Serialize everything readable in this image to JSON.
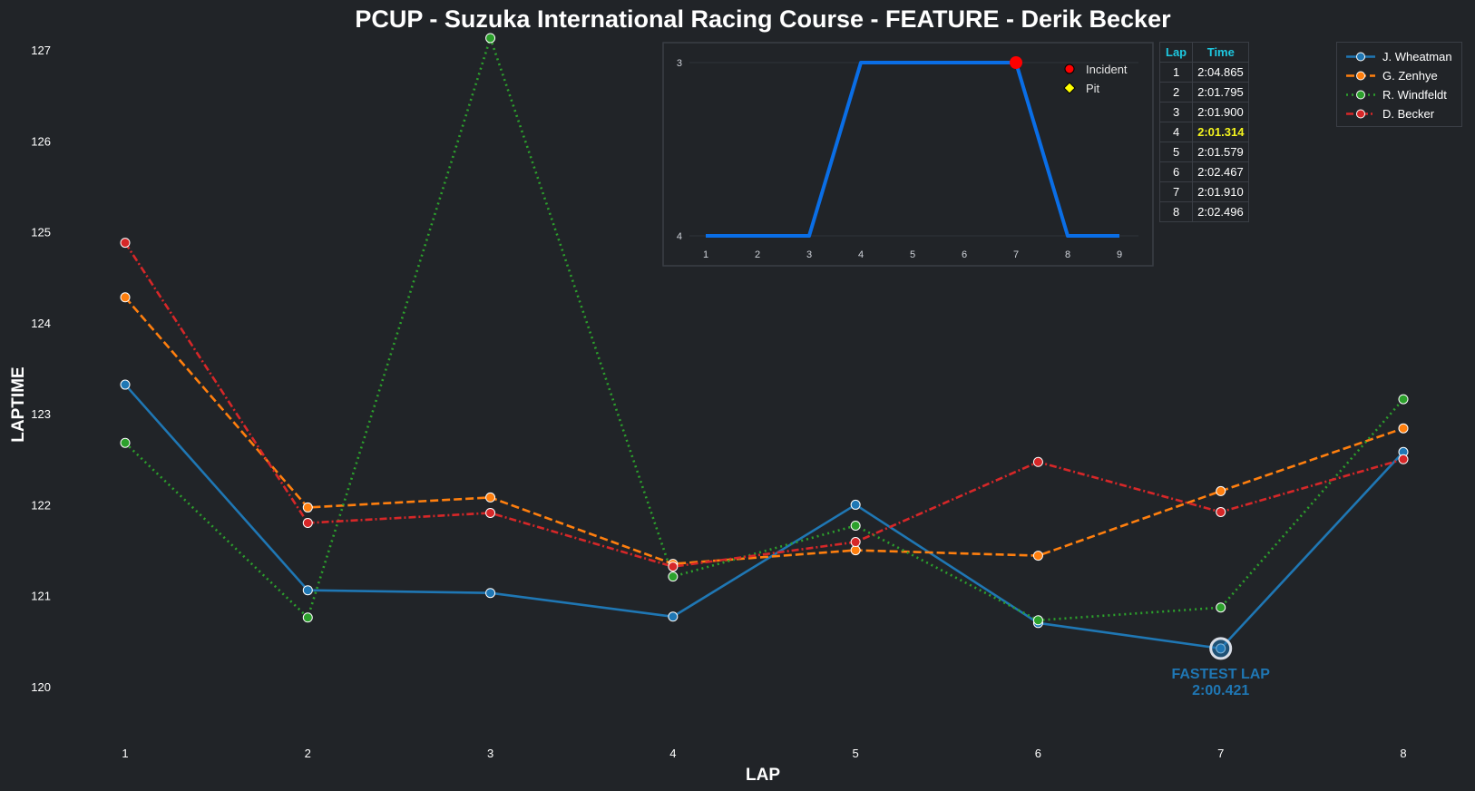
{
  "chart_data": {
    "type": "line",
    "title": "PCUP - Suzuka International Racing Course - FEATURE - Derik Becker",
    "xlabel": "LAP",
    "ylabel": "LAPTIME",
    "x": [
      1,
      2,
      3,
      4,
      5,
      6,
      7,
      8
    ],
    "ylim": [
      119.4,
      127.3
    ],
    "yticks": [
      120,
      121,
      122,
      123,
      124,
      125,
      126,
      127
    ],
    "series": [
      {
        "name": "J. Wheatman",
        "color": "#1f77b4",
        "style": "solid",
        "values": [
          123.32,
          121.06,
          121.03,
          120.77,
          122.0,
          120.7,
          120.42,
          122.58
        ]
      },
      {
        "name": "G. Zenhye",
        "color": "#ff7f0e",
        "style": "dashed",
        "values": [
          124.28,
          121.97,
          122.08,
          121.35,
          121.5,
          121.44,
          122.15,
          122.84
        ]
      },
      {
        "name": "R. Windfeldt",
        "color": "#2ca02c",
        "style": "dotted",
        "values": [
          122.68,
          120.76,
          127.13,
          121.21,
          121.77,
          120.73,
          120.87,
          123.16
        ]
      },
      {
        "name": "D. Becker",
        "color": "#d62728",
        "style": "dashdot",
        "values": [
          124.88,
          121.8,
          121.91,
          121.32,
          121.59,
          122.47,
          121.92,
          122.5
        ]
      }
    ],
    "annotation": {
      "series": "J. Wheatman",
      "lap": 7,
      "value": 120.42,
      "label_line1": "FASTEST LAP",
      "label_line2": "2:00.421",
      "color": "#1f77b4"
    },
    "grid": false,
    "legend_position": "top-right",
    "inset": {
      "type": "line",
      "description_role": "position",
      "x": [
        1,
        2,
        3,
        4,
        5,
        6,
        7,
        8,
        9
      ],
      "values": [
        4,
        4,
        4,
        3,
        3,
        3,
        3,
        4,
        4
      ],
      "yticks": [
        3,
        4
      ],
      "ylim": [
        3,
        4
      ],
      "color": "#0a6ee6",
      "incident_laps": [
        7
      ],
      "pit_laps": [],
      "legend": [
        {
          "label": "Incident",
          "marker": "circle",
          "color": "#ff0000"
        },
        {
          "label": "Pit",
          "marker": "diamond",
          "color": "#ffff00"
        }
      ]
    },
    "lap_table": {
      "headers": [
        "Lap",
        "Time"
      ],
      "rows": [
        [
          "1",
          "2:04.865"
        ],
        [
          "2",
          "2:01.795"
        ],
        [
          "3",
          "2:01.900"
        ],
        [
          "4",
          "2:01.314"
        ],
        [
          "5",
          "2:01.579"
        ],
        [
          "6",
          "2:02.467"
        ],
        [
          "7",
          "2:01.910"
        ],
        [
          "8",
          "2:02.496"
        ]
      ],
      "best_row_index": 3,
      "best_color": "#f5f51e",
      "header_color": "#1ec8e0"
    },
    "colors": {
      "background": "#212428",
      "text": "#ffffff",
      "frame": "#3a3e45"
    }
  }
}
